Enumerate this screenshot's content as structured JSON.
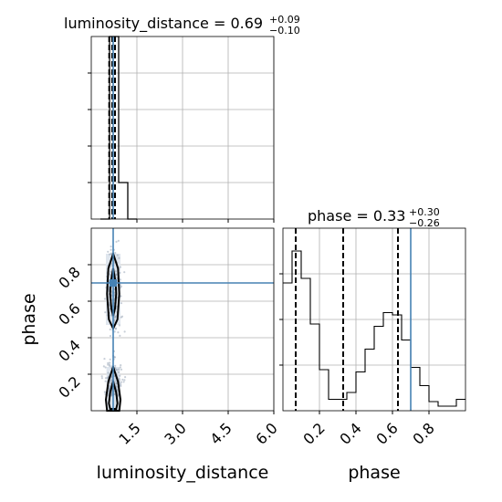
{
  "chart_data": [
    {
      "type": "histogram",
      "panel": "luminosity_distance-marginal",
      "title": {
        "main": "luminosity_distance = 0.69",
        "sup": "+0.09",
        "sub": "−0.10"
      },
      "xlim": [
        0.0,
        6.0
      ],
      "ylim": [
        0,
        1.0
      ],
      "bins": [
        {
          "x0": 0.3,
          "x1": 0.6,
          "y": 0.0
        },
        {
          "x0": 0.6,
          "x1": 0.9,
          "y": 1.0
        },
        {
          "x0": 0.9,
          "x1": 1.2,
          "y": 0.2
        },
        {
          "x0": 1.2,
          "x1": 1.5,
          "y": 0.0
        }
      ],
      "quantiles": [
        0.59,
        0.69,
        0.78
      ],
      "truth": 0.72,
      "grid": true
    },
    {
      "type": "scatter",
      "panel": "luminosity_distance-vs-phase",
      "xlim": [
        0.0,
        6.0
      ],
      "ylim": [
        0.0,
        1.0
      ],
      "xticks": [
        "1.5",
        "3.0",
        "4.5",
        "6.0"
      ],
      "yticks": [
        "0.2",
        "0.4",
        "0.6",
        "0.8"
      ],
      "xlabel": "luminosity_distance",
      "ylabel": "phase",
      "truth": {
        "x": 0.72,
        "y": 0.7
      },
      "grid": true
    },
    {
      "type": "histogram",
      "panel": "phase-marginal",
      "title": {
        "main": "phase = 0.33",
        "sup": "+0.30",
        "sub": "−0.26"
      },
      "xlim": [
        0.0,
        1.0
      ],
      "xticks": [
        "0.2",
        "0.4",
        "0.6",
        "0.8"
      ],
      "xlabel": "phase",
      "counts": [
        0.56,
        0.7,
        0.58,
        0.38,
        0.18,
        0.05,
        0.05,
        0.08,
        0.17,
        0.27,
        0.37,
        0.43,
        0.42,
        0.31,
        0.19,
        0.11,
        0.04,
        0.02,
        0.02,
        0.05
      ],
      "ylim": [
        0,
        0.8
      ],
      "quantiles": [
        0.07,
        0.33,
        0.63
      ],
      "truth": 0.7,
      "grid": true
    }
  ],
  "colors": {
    "truth": "#4682b4",
    "ink": "#000000",
    "grid": "#b0b0b0",
    "samples": "#9aa8b8",
    "density": "#dfe6ee"
  }
}
